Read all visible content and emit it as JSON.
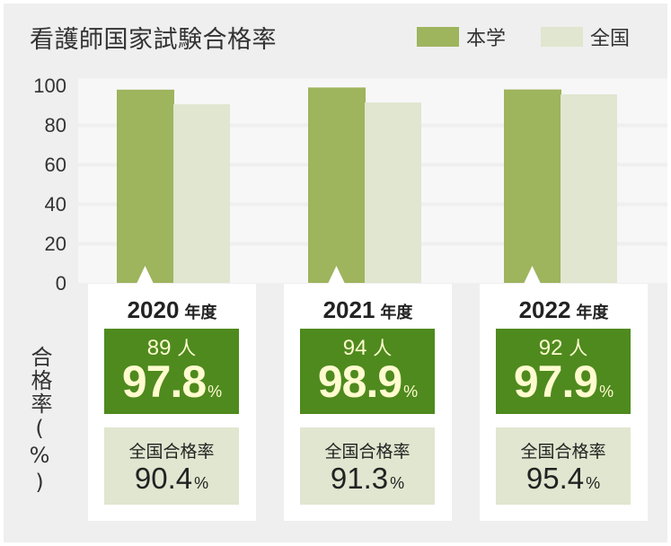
{
  "title": "看護師国家試験合格率",
  "legend": [
    {
      "label": "本学",
      "color": "#9eb45d"
    },
    {
      "label": "全国",
      "color": "#e0e6cf"
    }
  ],
  "y_axis_label": "合格率(%)",
  "chart_data": {
    "type": "bar",
    "title": "看護師国家試験合格率",
    "ylabel": "合格率(%)",
    "ylim": [
      0,
      100
    ],
    "yticks": [
      0,
      20,
      40,
      60,
      80,
      100
    ],
    "categories": [
      "2020",
      "2021",
      "2022"
    ],
    "series": [
      {
        "name": "本学",
        "values": [
          97.8,
          98.9,
          97.9
        ]
      },
      {
        "name": "全国",
        "values": [
          90.4,
          91.3,
          95.4
        ]
      }
    ]
  },
  "cards": [
    {
      "year": "2020",
      "year_unit": "年度",
      "count": "89",
      "count_unit": "人",
      "rate": "97.8",
      "rate_unit": "%",
      "national_label": "全国合格率",
      "national_rate": "90.4",
      "national_unit": "%"
    },
    {
      "year": "2021",
      "year_unit": "年度",
      "count": "94",
      "count_unit": "人",
      "rate": "98.9",
      "rate_unit": "%",
      "national_label": "全国合格率",
      "national_rate": "91.3",
      "national_unit": "%"
    },
    {
      "year": "2022",
      "year_unit": "年度",
      "count": "92",
      "count_unit": "人",
      "rate": "97.9",
      "rate_unit": "%",
      "national_label": "全国合格率",
      "national_rate": "95.4",
      "national_unit": "%"
    }
  ]
}
